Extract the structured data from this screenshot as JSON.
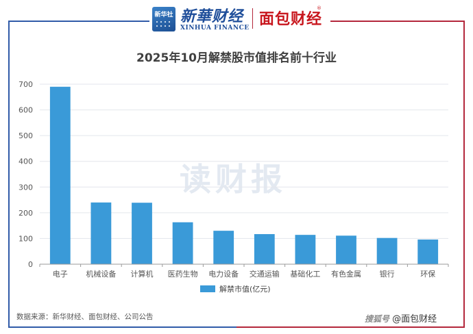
{
  "header": {
    "xinhua_logo_text": "新华社",
    "xinhua_name": "新華财经",
    "xinhua_en": "XINHUA FINANCE",
    "mianbao_name": "面包财经",
    "mianbao_mark": "®"
  },
  "watermark": "读财报",
  "source": "数据来源：新华财经、面包财经、公司公告",
  "credit": {
    "platform": "搜狐号",
    "handle": "@面包财经"
  },
  "colors": {
    "bar": "#3a9ad8",
    "grid": "#e3e6ec",
    "axis": "#9a9a9a"
  },
  "chart_data": {
    "type": "bar",
    "title": "2025年10月解禁股市值排名前十行业",
    "categories": [
      "电子",
      "机械设备",
      "计算机",
      "医药生物",
      "电力设备",
      "交通运输",
      "基础化工",
      "有色金属",
      "银行",
      "环保"
    ],
    "series": [
      {
        "name": "解禁市值(亿元)",
        "values": [
          690,
          240,
          239,
          163,
          130,
          117,
          114,
          111,
          102,
          96
        ]
      }
    ],
    "xlabel": "",
    "ylabel": "",
    "ylim": [
      0,
      700
    ],
    "yticks": [
      0,
      100,
      200,
      300,
      400,
      500,
      600,
      700
    ],
    "grid": true,
    "legend": "bottom"
  }
}
